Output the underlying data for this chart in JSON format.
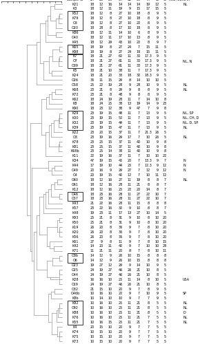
{
  "figsize": [
    3.19,
    5.0
  ],
  "dpi": 100,
  "samples": [
    {
      "name": "K21",
      "row": 1,
      "2A": "18",
      "2B": "12",
      "2C": "16",
      "3A": "14",
      "3B": "14",
      "3C": "14",
      "4A": "19",
      "4B": "12",
      "4C": "5",
      "also": "NL"
    },
    {
      "name": "K3",
      "row": 2,
      "2A": "18",
      "2B": "12",
      "2C": "11",
      "3A": "19",
      "3B": "9",
      "3C": "15",
      "4A": "17",
      "4B": "15",
      "4C": "5",
      "also": ""
    },
    {
      "name": "K52",
      "row": 3,
      "2A": "18",
      "2B": "12",
      "2C": "8",
      "3A": "27",
      "3B": "10",
      "3C": "18",
      "4A": "8",
      "4B": "9",
      "4C": "5",
      "also": ""
    },
    {
      "name": "K79",
      "row": 4,
      "2A": "18",
      "2B": "12",
      "2C": "8",
      "3A": "27",
      "3B": "10",
      "3C": "18",
      "4A": "8",
      "4B": "9",
      "4C": "5",
      "also": ""
    },
    {
      "name": "O3",
      "row": 5,
      "2A": "18",
      "2B": "12",
      "2C": "8",
      "3A": "27",
      "3B": "10",
      "3C": "20",
      "4A": "8",
      "4B": "9",
      "4C": "5",
      "also": ""
    },
    {
      "name": "O20",
      "row": 6,
      "2A": "18",
      "2B": "28",
      "2C": "8",
      "3A": "17",
      "3B": "10",
      "3C": "18",
      "4A": "8",
      "4B": "9",
      "4C": "5",
      "also": ""
    },
    {
      "name": "K86",
      "row": 7,
      "2A": "18",
      "2B": "12",
      "2C": "11",
      "3A": "14",
      "3B": "10",
      "3C": "6",
      "4A": "8",
      "4B": "9",
      "4C": "5",
      "also": ""
    },
    {
      "name": "O40",
      "row": 8,
      "2A": "18",
      "2B": "12",
      "2C": "11",
      "3A": "17",
      "3B": "10",
      "3C": "13",
      "4A": "8",
      "4B": "9",
      "4C": "5",
      "also": ""
    },
    {
      "name": "K45",
      "row": 9,
      "2A": "18",
      "2B": "12",
      "2C": "29",
      "3A": "43",
      "3B": "10",
      "3C": "22",
      "4A": "8",
      "4B": "9",
      "4C": "7",
      "also": ""
    },
    {
      "name": "K65",
      "row": 10,
      "2A": "18",
      "2B": "19",
      "2C": "8",
      "3A": "27",
      "3B": "24",
      "3C": "7",
      "4A": "15",
      "4B": "11",
      "4C": "5",
      "also": ""
    },
    {
      "name": "K98",
      "row": 11,
      "2A": "18",
      "2B": "19",
      "2C": "8",
      "3A": "27",
      "3B": "24",
      "3C": "18",
      "4A": "15",
      "4B": "11",
      "4C": "5",
      "also": ""
    },
    {
      "name": "K7",
      "row": 12,
      "2A": "18",
      "2B": "21",
      "2C": "27",
      "3A": "62",
      "3B": "11",
      "3C": "30",
      "4A": "17.3",
      "4B": "9",
      "4C": "5",
      "also": ""
    },
    {
      "name": "O7",
      "row": 13,
      "2A": "18",
      "2B": "21",
      "2C": "27",
      "3A": "61",
      "3B": "11",
      "3C": "30",
      "4A": "17.3",
      "4B": "9",
      "4C": "5",
      "also": "NL, N"
    },
    {
      "name": "O39",
      "row": 14,
      "2A": "18",
      "2B": "21",
      "2C": "27",
      "3A": "61",
      "3B": "11",
      "3C": "30",
      "4A": "17.3",
      "4B": "9",
      "4C": "5",
      "also": ""
    },
    {
      "name": "K5",
      "row": 15,
      "2A": "18",
      "2B": "21",
      "2C": "10",
      "3A": "38",
      "3B": "11",
      "3C": "7",
      "4A": "17.3",
      "4B": "9",
      "4C": "5",
      "also": ""
    },
    {
      "name": "K24",
      "row": 16,
      "2A": "18",
      "2B": "21",
      "2C": "20",
      "3A": "33",
      "3B": "18",
      "3C": "32",
      "4A": "18.3",
      "4B": "9",
      "4C": "5",
      "also": ""
    },
    {
      "name": "O26",
      "row": 17,
      "2A": "36",
      "2B": "11",
      "2C": "15",
      "3A": "29",
      "3B": "8",
      "3C": "14",
      "4A": "10",
      "4B": "10",
      "4C": "5",
      "also": ""
    },
    {
      "name": "O58",
      "row": 18,
      "2A": "25",
      "2B": "22",
      "2C": "19",
      "3A": "28",
      "3B": "9",
      "3C": "28",
      "4A": "10",
      "4B": "9",
      "4C": "5",
      "also": "NL"
    },
    {
      "name": "K68",
      "row": 19,
      "2A": "23",
      "2B": "21",
      "2C": "8",
      "3A": "29",
      "3B": "9",
      "3C": "8",
      "4A": "8",
      "4B": "9",
      "4C": "5",
      "also": "NL"
    },
    {
      "name": "K72",
      "row": 20,
      "2A": "23",
      "2B": "21",
      "2C": "8",
      "3A": "48",
      "3B": "9",
      "3C": "8",
      "4A": "8",
      "4B": "9",
      "4C": "5",
      "also": ""
    },
    {
      "name": "K62",
      "row": 21,
      "2A": "18",
      "2B": "24",
      "2C": "19",
      "3A": "28",
      "3B": "11",
      "3C": "7",
      "4A": "14",
      "4B": "10",
      "4C": "8",
      "also": ""
    },
    {
      "name": "K8",
      "row": 22,
      "2A": "18",
      "2B": "24",
      "2C": "25",
      "3A": "38",
      "3B": "13",
      "3C": "19",
      "4A": "14",
      "4B": "9",
      "4C": "23",
      "also": ""
    },
    {
      "name": "K90",
      "row": 23,
      "2A": "18",
      "2B": "23",
      "2C": "12",
      "3A": "38",
      "3B": "9",
      "3C": "47",
      "4A": "7",
      "4B": "9",
      "4C": "8",
      "also": ""
    },
    {
      "name": "K29",
      "row": 24,
      "2A": "23",
      "2B": "19",
      "2C": "15",
      "3A": "48",
      "3B": "11",
      "3C": "7",
      "4A": "13",
      "4B": "9",
      "4C": "5",
      "also": "NL, SP"
    },
    {
      "name": "K30",
      "row": 25,
      "2A": "23",
      "2B": "19",
      "2C": "15",
      "3A": "50",
      "3B": "11",
      "3C": "7",
      "4A": "13",
      "4B": "9",
      "4C": "5",
      "also": "NL, CH, D"
    },
    {
      "name": "K32",
      "row": 26,
      "2A": "23",
      "2B": "19",
      "2C": "15",
      "3A": "49",
      "3B": "11",
      "3C": "7",
      "4A": "13",
      "4B": "9",
      "4C": "5",
      "also": "NL, D, SP"
    },
    {
      "name": "K39",
      "row": 27,
      "2A": "23",
      "2B": "19",
      "2C": "15",
      "3A": "47",
      "3B": "11",
      "3C": "7",
      "4A": "13",
      "4B": "9",
      "4C": "5",
      "also": "NL"
    },
    {
      "name": "K22",
      "row": 28,
      "2A": "23",
      "2B": "20",
      "2C": "15",
      "3A": "37",
      "3B": "11",
      "3C": "7",
      "4A": "21.3",
      "4B": "26",
      "4C": "5",
      "also": ""
    },
    {
      "name": "O8",
      "row": 29,
      "2A": "23",
      "2B": "19",
      "2C": "16",
      "3A": "29",
      "3B": "17",
      "3C": "7",
      "4A": "10",
      "4B": "26",
      "4C": "5",
      "also": "NL"
    },
    {
      "name": "K78",
      "row": 30,
      "2A": "23",
      "2B": "25",
      "2C": "15",
      "3A": "37",
      "3B": "11",
      "3C": "40",
      "4A": "10",
      "4B": "9",
      "4C": "8",
      "also": ""
    },
    {
      "name": "K81",
      "row": 31,
      "2A": "23",
      "2B": "25",
      "2C": "15",
      "3A": "37",
      "3B": "11",
      "3C": "40",
      "4A": "10",
      "4B": "9",
      "4C": "8",
      "also": ""
    },
    {
      "name": "K68b",
      "row": 32,
      "2A": "23",
      "2B": "25",
      "2C": "14",
      "3A": "38",
      "3B": "11",
      "3C": "40",
      "4A": "10",
      "4B": "9",
      "4C": "8",
      "also": ""
    },
    {
      "name": "K11",
      "row": 33,
      "2A": "22",
      "2B": "19",
      "2C": "16",
      "3A": "37",
      "3B": "11",
      "3C": "7",
      "4A": "10",
      "4B": "10",
      "4C": "22",
      "also": ""
    },
    {
      "name": "K34",
      "row": 34,
      "2A": "47",
      "2B": "19",
      "2C": "15",
      "3A": "45",
      "3B": "20",
      "3C": "7",
      "4A": "13.3",
      "4B": "9",
      "4C": "7",
      "also": "N"
    },
    {
      "name": "K44",
      "row": 35,
      "2A": "17",
      "2B": "19",
      "2C": "10",
      "3A": "44",
      "3B": "25",
      "3C": "7",
      "4A": "12.3",
      "4B": "9",
      "4C": "12",
      "also": "N"
    },
    {
      "name": "O49",
      "row": 36,
      "2A": "20",
      "2B": "16",
      "2C": "9",
      "3A": "29",
      "3B": "27",
      "3C": "7",
      "4A": "12",
      "4B": "9",
      "4C": "12",
      "also": "N"
    },
    {
      "name": "O4",
      "row": 37,
      "2A": "20",
      "2B": "19",
      "2C": "15",
      "3A": "40",
      "3B": "12",
      "3C": "7",
      "4A": "10",
      "4B": "11",
      "4C": "12",
      "also": ""
    },
    {
      "name": "O60",
      "row": 38,
      "2A": "18",
      "2B": "12",
      "2C": "16",
      "3A": "27",
      "3B": "11",
      "3C": "19",
      "4A": "8",
      "4B": "8",
      "4C": "7",
      "also": "NL"
    },
    {
      "name": "O61",
      "row": 39,
      "2A": "18",
      "2B": "12",
      "2C": "16",
      "3A": "28",
      "3B": "11",
      "3C": "21",
      "4A": "8",
      "4B": "8",
      "4C": "7",
      "also": ""
    },
    {
      "name": "K12",
      "row": 40,
      "2A": "18",
      "2B": "12",
      "2C": "16",
      "3A": "25",
      "3B": "22",
      "3C": "20",
      "4A": "14",
      "4B": "8",
      "4C": "7",
      "also": ""
    },
    {
      "name": "O46",
      "row": 41,
      "2A": "18",
      "2B": "23",
      "2C": "16",
      "3A": "28",
      "3B": "11",
      "3C": "27",
      "4A": "22",
      "4B": "10",
      "4C": "7",
      "also": ""
    },
    {
      "name": "O57",
      "row": 42,
      "2A": "18",
      "2B": "23",
      "2C": "16",
      "3A": "28",
      "3B": "11",
      "3C": "27",
      "4A": "22",
      "4B": "10",
      "4C": "7",
      "also": ""
    },
    {
      "name": "K43",
      "row": 43,
      "2A": "21",
      "2B": "22",
      "2C": "16",
      "3A": "28",
      "3B": "11",
      "3C": "15",
      "4A": "8",
      "4B": "8",
      "4C": "8",
      "also": ""
    },
    {
      "name": "K57",
      "row": 44,
      "2A": "23",
      "2B": "22",
      "2C": "16",
      "3A": "32",
      "3B": "9",
      "3C": "10",
      "4A": "8",
      "4B": "8",
      "4C": "7",
      "also": ""
    },
    {
      "name": "K48",
      "row": 45,
      "2A": "19",
      "2B": "23",
      "2C": "11",
      "3A": "17",
      "3B": "13",
      "3C": "27",
      "4A": "10",
      "4B": "14",
      "4C": "5",
      "also": ""
    },
    {
      "name": "K93",
      "row": 46,
      "2A": "25",
      "2B": "21",
      "2C": "8",
      "3A": "31",
      "3B": "9",
      "3C": "10",
      "4A": "8",
      "4B": "10",
      "4C": "20",
      "also": ""
    },
    {
      "name": "K50",
      "row": 47,
      "2A": "25",
      "2B": "21",
      "2C": "8",
      "3A": "31",
      "3B": "9",
      "3C": "10",
      "4A": "8",
      "4B": "10",
      "4C": "20",
      "also": ""
    },
    {
      "name": "K19",
      "row": 48,
      "2A": "26",
      "2B": "20",
      "2C": "8",
      "3A": "36",
      "3B": "9",
      "3C": "7",
      "4A": "8",
      "4B": "10",
      "4C": "20",
      "also": ""
    },
    {
      "name": "K20",
      "row": 49,
      "2A": "26",
      "2B": "20",
      "2C": "8",
      "3A": "36",
      "3B": "9",
      "3C": "7",
      "4A": "8",
      "4B": "10",
      "4C": "20",
      "also": ""
    },
    {
      "name": "K56",
      "row": 50,
      "2A": "26",
      "2B": "20",
      "2C": "8",
      "3A": "36",
      "3B": "9",
      "3C": "7",
      "4A": "8",
      "4B": "10",
      "4C": "20",
      "also": ""
    },
    {
      "name": "K61",
      "row": 51,
      "2A": "27",
      "2B": "9",
      "2C": "8",
      "3A": "11",
      "3B": "9",
      "3C": "7",
      "4A": "8",
      "4B": "10",
      "4C": "15",
      "also": ""
    },
    {
      "name": "K42",
      "row": 52,
      "2A": "14",
      "2B": "20",
      "2C": "11",
      "3A": "40",
      "3B": "9",
      "3C": "7",
      "4A": "10",
      "4B": "10",
      "4C": "28",
      "also": ""
    },
    {
      "name": "K71",
      "row": 53,
      "2A": "11",
      "2B": "21",
      "2C": "11",
      "3A": "20",
      "3B": "8",
      "3C": "7",
      "4A": "8",
      "4B": "10",
      "4C": "11",
      "also": ""
    },
    {
      "name": "O8b",
      "row": 54,
      "2A": "14",
      "2B": "12",
      "2C": "9",
      "3A": "26",
      "3B": "10",
      "3C": "15",
      "4A": "8",
      "4B": "8",
      "4C": "8",
      "also": ""
    },
    {
      "name": "O6",
      "row": 55,
      "2A": "14",
      "2B": "12",
      "2C": "9",
      "3A": "26",
      "3B": "10",
      "3C": "15",
      "4A": "8",
      "4B": "8",
      "4C": "8",
      "also": ""
    },
    {
      "name": "O23",
      "row": 56,
      "2A": "19",
      "2B": "27",
      "2C": "12",
      "3A": "29",
      "3B": "9",
      "3C": "14",
      "4A": "10",
      "4B": "9",
      "4C": "5",
      "also": ""
    },
    {
      "name": "O25",
      "row": 57,
      "2A": "24",
      "2B": "19",
      "2C": "27",
      "3A": "46",
      "3B": "26",
      "3C": "21",
      "4A": "10",
      "4B": "8",
      "4C": "5",
      "also": ""
    },
    {
      "name": "O44",
      "row": 58,
      "2A": "24",
      "2B": "19",
      "2C": "27",
      "3A": "46",
      "3B": "26",
      "3C": "21",
      "4A": "10",
      "4B": "8",
      "4C": "5",
      "also": ""
    },
    {
      "name": "K28",
      "row": 59,
      "2A": "16",
      "2B": "16",
      "2C": "10",
      "3A": "25",
      "3B": "11",
      "3C": "14",
      "4A": "8",
      "4B": "10",
      "4C": "5",
      "also": "USA"
    },
    {
      "name": "O19",
      "row": 60,
      "2A": "24",
      "2B": "19",
      "2C": "27",
      "3A": "46",
      "3B": "26",
      "3C": "21",
      "4A": "10",
      "4B": "8",
      "4C": "5",
      "also": ""
    },
    {
      "name": "O32",
      "row": 61,
      "2A": "21",
      "2B": "15",
      "2C": "10",
      "3A": "20",
      "3B": "9",
      "3C": "7",
      "4A": "8",
      "4B": "9",
      "4C": "5",
      "also": ""
    },
    {
      "name": "O46b",
      "row": 62,
      "2A": "10",
      "2B": "16",
      "2C": "10",
      "3A": "22",
      "3B": "9",
      "3C": "7",
      "4A": "10",
      "4B": "9",
      "4C": "5",
      "also": "SP"
    },
    {
      "name": "K8b",
      "row": 63,
      "2A": "10",
      "2B": "14",
      "2C": "10",
      "3A": "10",
      "3B": "9",
      "3C": "7",
      "4A": "7",
      "4B": "9",
      "4C": "5",
      "also": ""
    },
    {
      "name": "K82",
      "row": 64,
      "2A": "10",
      "2B": "16",
      "2C": "10",
      "3A": "25",
      "3B": "11",
      "3C": "21",
      "4A": "8",
      "4B": "5",
      "4C": "5",
      "also": "NL"
    },
    {
      "name": "O92",
      "row": 65,
      "2A": "10",
      "2B": "16",
      "2C": "10",
      "3A": "25",
      "3B": "11",
      "3C": "21",
      "4A": "8",
      "4B": "5",
      "4C": "5",
      "also": "NL"
    },
    {
      "name": "K88",
      "row": 66,
      "2A": "10",
      "2B": "16",
      "2C": "10",
      "3A": "25",
      "3B": "11",
      "3C": "21",
      "4A": "8",
      "4B": "5",
      "4C": "5",
      "also": "D"
    },
    {
      "name": "K76",
      "row": 67,
      "2A": "10",
      "2B": "16",
      "2C": "10",
      "3A": "25",
      "3B": "11",
      "3C": "21",
      "4A": "7",
      "4B": "5",
      "4C": "5",
      "also": "NL"
    },
    {
      "name": "K55",
      "row": 68,
      "2A": "10",
      "2B": "16",
      "2C": "15",
      "3A": "25",
      "3B": "11",
      "3C": "21",
      "4A": "7",
      "4B": "5",
      "4C": "5",
      "also": "NL"
    },
    {
      "name": "K4",
      "row": 69,
      "2A": "20",
      "2B": "15",
      "2C": "10",
      "3A": "20",
      "3B": "9",
      "3C": "7",
      "4A": "7",
      "4B": "5",
      "4C": "5",
      "also": ""
    },
    {
      "name": "K74",
      "row": 70,
      "2A": "10",
      "2B": "15",
      "2C": "10",
      "3A": "20",
      "3B": "9",
      "3C": "7",
      "4A": "7",
      "4B": "5",
      "4C": "5",
      "also": ""
    },
    {
      "name": "K75",
      "row": 71,
      "2A": "10",
      "2B": "15",
      "2C": "10",
      "3A": "20",
      "3B": "9",
      "3C": "7",
      "4A": "7",
      "4B": "5",
      "4C": "5",
      "also": ""
    },
    {
      "name": "K73",
      "row": 72,
      "2A": "10",
      "2B": "15",
      "2C": "10",
      "3A": "20",
      "3B": "9",
      "3C": "7",
      "4A": "7",
      "4B": "5",
      "4C": "5",
      "also": ""
    }
  ],
  "box_groups": [
    [
      3,
      4,
      5,
      6
    ],
    [
      10,
      11
    ],
    [
      12,
      13,
      14
    ],
    [
      24,
      25,
      26,
      27
    ],
    [
      41,
      42
    ],
    [
      54,
      55
    ],
    [
      64,
      65,
      66,
      67,
      68
    ]
  ],
  "line_color": "#999999",
  "box_color": "#333333",
  "text_color": "#000000",
  "bg_color": "#ffffff",
  "font_size": 3.5
}
